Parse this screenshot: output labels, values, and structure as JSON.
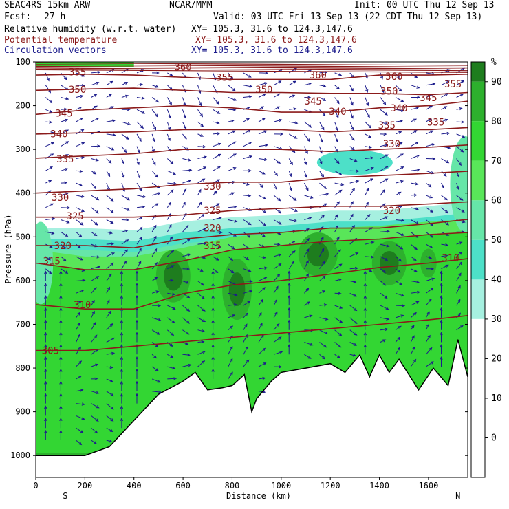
{
  "header": {
    "model": "SEAC4RS 15km ARW",
    "org": "NCAR/MMM",
    "init": "Init: 00 UTC Thu 12 Sep 13",
    "fcst_label": "Fcst:",
    "fcst_value": "27 h",
    "valid": "Valid: 03 UTC Fri 13 Sep 13 (22 CDT Thu 12 Sep 13)",
    "fields": [
      {
        "name": "Relative humidity (w.r.t. water)",
        "xy": "XY= 105.3, 31.6 to 124.3,147.6",
        "color": "#000000"
      },
      {
        "name": "Potential temperature",
        "xy": "XY= 105.3, 31.6 to 124.3,147.6",
        "color": "#8b1a1a"
      },
      {
        "name": "Circulation vectors",
        "xy": "XY= 105.3, 31.6 to 124.3,147.6",
        "color": "#1c1c8c"
      }
    ]
  },
  "chart_data": {
    "type": "heatmap",
    "xlabel": "Distance (km)",
    "ylabel": "Pressure (hPa)",
    "xlim": [
      0,
      1760
    ],
    "ylim": [
      1050,
      100
    ],
    "x_ticks": [
      0,
      200,
      400,
      600,
      800,
      1000,
      1200,
      1400,
      1600
    ],
    "y_ticks": [
      100,
      200,
      300,
      400,
      500,
      600,
      700,
      800,
      900,
      1000
    ],
    "x_end_labels": {
      "left": "S",
      "right": "N"
    },
    "colorbar": {
      "unit": "%",
      "levels": [
        90,
        80,
        70,
        60,
        50,
        40,
        30,
        20,
        10,
        0
      ],
      "colors": [
        "#1e7d1e",
        "#2db02d",
        "#33d633",
        "#59e659",
        "#66e6a8",
        "#4de0c8",
        "#a6f0e0",
        "#ffffff",
        "#ffffff",
        "#ffffff"
      ]
    },
    "theta_isentropes_K": [
      {
        "theta": 355,
        "points": [
          [
            0,
            130
          ],
          [
            200,
            128
          ],
          [
            400,
            130
          ],
          [
            600,
            135
          ],
          [
            800,
            140
          ],
          [
            1000,
            140
          ],
          [
            1200,
            140
          ],
          [
            1400,
            130
          ],
          [
            1600,
            130
          ],
          [
            1760,
            128
          ]
        ]
      },
      {
        "theta": 350,
        "points": [
          [
            0,
            165
          ],
          [
            200,
            162
          ],
          [
            400,
            160
          ],
          [
            600,
            165
          ],
          [
            800,
            170
          ],
          [
            1000,
            170
          ],
          [
            1200,
            172
          ],
          [
            1400,
            172
          ],
          [
            1600,
            175
          ],
          [
            1760,
            170
          ]
        ]
      },
      {
        "theta": 345,
        "points": [
          [
            0,
            220
          ],
          [
            200,
            210
          ],
          [
            400,
            205
          ],
          [
            600,
            200
          ],
          [
            800,
            205
          ],
          [
            1000,
            215
          ],
          [
            1200,
            215
          ],
          [
            1400,
            205
          ],
          [
            1600,
            200
          ],
          [
            1760,
            190
          ]
        ]
      },
      {
        "theta": 340,
        "points": [
          [
            0,
            265
          ],
          [
            200,
            262
          ],
          [
            400,
            260
          ],
          [
            600,
            255
          ],
          [
            800,
            255
          ],
          [
            1000,
            255
          ],
          [
            1200,
            260
          ],
          [
            1400,
            255
          ],
          [
            1600,
            255
          ],
          [
            1760,
            250
          ]
        ]
      },
      {
        "theta": 335,
        "points": [
          [
            0,
            320
          ],
          [
            200,
            315
          ],
          [
            400,
            310
          ],
          [
            600,
            300
          ],
          [
            800,
            300
          ],
          [
            1000,
            300
          ],
          [
            1200,
            305
          ],
          [
            1400,
            300
          ],
          [
            1600,
            295
          ],
          [
            1760,
            290
          ]
        ]
      },
      {
        "theta": 330,
        "points": [
          [
            0,
            400
          ],
          [
            200,
            395
          ],
          [
            400,
            390
          ],
          [
            600,
            380
          ],
          [
            800,
            375
          ],
          [
            1000,
            375
          ],
          [
            1200,
            365
          ],
          [
            1400,
            360
          ],
          [
            1600,
            355
          ],
          [
            1760,
            350
          ]
        ]
      },
      {
        "theta": 325,
        "points": [
          [
            0,
            455
          ],
          [
            200,
            455
          ],
          [
            400,
            455
          ],
          [
            600,
            450
          ],
          [
            800,
            440
          ],
          [
            1000,
            435
          ],
          [
            1200,
            430
          ],
          [
            1400,
            430
          ],
          [
            1600,
            425
          ],
          [
            1760,
            420
          ]
        ]
      },
      {
        "theta": 320,
        "points": [
          [
            0,
            520
          ],
          [
            200,
            520
          ],
          [
            400,
            525
          ],
          [
            600,
            505
          ],
          [
            800,
            495
          ],
          [
            1000,
            490
          ],
          [
            1200,
            480
          ],
          [
            1400,
            480
          ],
          [
            1600,
            470
          ],
          [
            1760,
            460
          ]
        ]
      },
      {
        "theta": 315,
        "points": [
          [
            0,
            560
          ],
          [
            200,
            575
          ],
          [
            400,
            575
          ],
          [
            600,
            555
          ],
          [
            800,
            530
          ],
          [
            1000,
            520
          ],
          [
            1200,
            510
          ],
          [
            1400,
            505
          ],
          [
            1600,
            495
          ],
          [
            1760,
            490
          ]
        ]
      },
      {
        "theta": 310,
        "points": [
          [
            0,
            655
          ],
          [
            200,
            665
          ],
          [
            400,
            665
          ],
          [
            600,
            630
          ],
          [
            800,
            610
          ],
          [
            1000,
            600
          ],
          [
            1200,
            585
          ],
          [
            1400,
            570
          ],
          [
            1600,
            560
          ],
          [
            1760,
            550
          ]
        ]
      },
      {
        "theta": 305,
        "points": [
          [
            0,
            760
          ],
          [
            200,
            760
          ],
          [
            400,
            750
          ],
          [
            600,
            740
          ],
          [
            800,
            730
          ],
          [
            1000,
            720
          ],
          [
            1200,
            710
          ],
          [
            1400,
            700
          ],
          [
            1600,
            690
          ],
          [
            1760,
            680
          ]
        ]
      }
    ],
    "contour_labels": [
      {
        "text": "355",
        "x": 170,
        "p": 123
      },
      {
        "text": "360",
        "x": 600,
        "p": 112
      },
      {
        "text": "355",
        "x": 770,
        "p": 135
      },
      {
        "text": "360",
        "x": 1150,
        "p": 130
      },
      {
        "text": "360",
        "x": 1460,
        "p": 133
      },
      {
        "text": "355",
        "x": 1700,
        "p": 150
      },
      {
        "text": "350",
        "x": 170,
        "p": 163
      },
      {
        "text": "350",
        "x": 930,
        "p": 163
      },
      {
        "text": "350",
        "x": 1440,
        "p": 167
      },
      {
        "text": "345",
        "x": 1130,
        "p": 190
      },
      {
        "text": "345",
        "x": 1600,
        "p": 182
      },
      {
        "text": "345",
        "x": 115,
        "p": 217
      },
      {
        "text": "340",
        "x": 1230,
        "p": 213
      },
      {
        "text": "340",
        "x": 1480,
        "p": 205
      },
      {
        "text": "335",
        "x": 1430,
        "p": 245
      },
      {
        "text": "335",
        "x": 1630,
        "p": 238
      },
      {
        "text": "340",
        "x": 95,
        "p": 264
      },
      {
        "text": "330",
        "x": 1450,
        "p": 287
      },
      {
        "text": "335",
        "x": 120,
        "p": 322
      },
      {
        "text": "330",
        "x": 720,
        "p": 385
      },
      {
        "text": "330",
        "x": 100,
        "p": 410
      },
      {
        "text": "325",
        "x": 720,
        "p": 440
      },
      {
        "text": "325",
        "x": 160,
        "p": 452
      },
      {
        "text": "320",
        "x": 1450,
        "p": 440
      },
      {
        "text": "320",
        "x": 720,
        "p": 480
      },
      {
        "text": "320",
        "x": 110,
        "p": 520
      },
      {
        "text": "315",
        "x": 720,
        "p": 520
      },
      {
        "text": "315",
        "x": 65,
        "p": 555
      },
      {
        "text": "310",
        "x": 1690,
        "p": 548
      },
      {
        "text": "310",
        "x": 190,
        "p": 655
      },
      {
        "text": "305",
        "x": 60,
        "p": 760
      }
    ],
    "terrain_hPa": [
      [
        0,
        1000
      ],
      [
        200,
        1000
      ],
      [
        300,
        980
      ],
      [
        400,
        920
      ],
      [
        500,
        860
      ],
      [
        600,
        830
      ],
      [
        650,
        810
      ],
      [
        700,
        850
      ],
      [
        760,
        845
      ],
      [
        800,
        840
      ],
      [
        850,
        815
      ],
      [
        880,
        900
      ],
      [
        900,
        870
      ],
      [
        960,
        830
      ],
      [
        1000,
        810
      ],
      [
        1100,
        800
      ],
      [
        1200,
        790
      ],
      [
        1260,
        810
      ],
      [
        1320,
        770
      ],
      [
        1360,
        820
      ],
      [
        1400,
        770
      ],
      [
        1440,
        810
      ],
      [
        1480,
        780
      ],
      [
        1560,
        850
      ],
      [
        1620,
        800
      ],
      [
        1680,
        840
      ],
      [
        1720,
        735
      ],
      [
        1760,
        820
      ]
    ],
    "rh_moist_regions": [
      {
        "level": 90,
        "center": [
          560,
          590
        ],
        "half_width_km": 70,
        "half_depth_hPa": 60
      },
      {
        "level": 90,
        "center": [
          820,
          620
        ],
        "half_width_km": 60,
        "half_depth_hPa": 70
      },
      {
        "level": 90,
        "center": [
          1150,
          540
        ],
        "half_width_km": 80,
        "half_depth_hPa": 50
      },
      {
        "level": 90,
        "center": [
          1440,
          560
        ],
        "half_width_km": 70,
        "half_depth_hPa": 50
      },
      {
        "level": 80,
        "center": [
          1600,
          560
        ],
        "half_width_km": 60,
        "half_depth_hPa": 60
      }
    ]
  }
}
